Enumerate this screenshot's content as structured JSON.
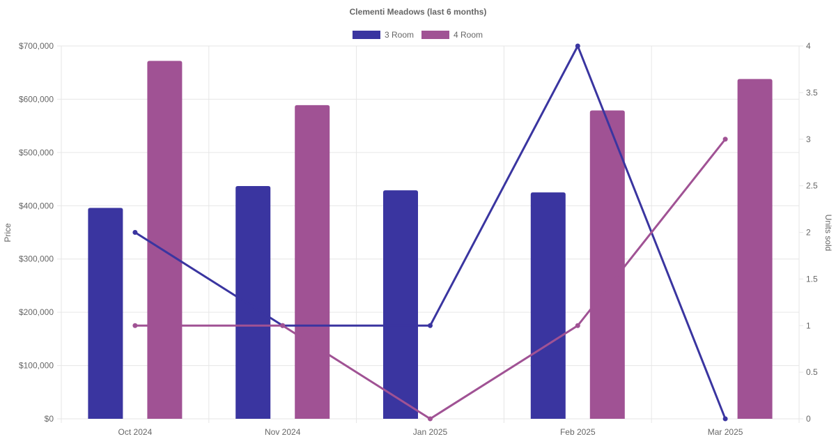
{
  "chart_data": {
    "type": "bar",
    "title": "Clementi Meadows (last 6 months)",
    "categories": [
      "Oct 2024",
      "Nov 2024",
      "Jan 2025",
      "Feb 2025",
      "Mar 2025"
    ],
    "y_left": {
      "label": "Price",
      "range": [
        0,
        700000
      ],
      "ticks": [
        0,
        100000,
        200000,
        300000,
        400000,
        500000,
        600000,
        700000
      ],
      "tick_labels": [
        "$0",
        "$100,000",
        "$200,000",
        "$300,000",
        "$400,000",
        "$500,000",
        "$600,000",
        "$700,000"
      ]
    },
    "y_right": {
      "label": "Units sold",
      "range": [
        0,
        4
      ],
      "ticks": [
        0,
        0.5,
        1,
        1.5,
        2,
        2.5,
        3,
        3.5,
        4
      ],
      "tick_labels": [
        "0",
        "0.5",
        "1",
        "1.5",
        "2",
        "2.5",
        "3",
        "3.5",
        "4"
      ]
    },
    "bar_series": [
      {
        "name": "3 Room",
        "color": "#3a35a0",
        "values": [
          396000,
          437000,
          429000,
          425000,
          null
        ]
      },
      {
        "name": "4 Room",
        "color": "#a05294",
        "values": [
          672000,
          589000,
          null,
          579000,
          638000
        ]
      }
    ],
    "line_series": [
      {
        "series": "3 Room",
        "color": "#3a35a0",
        "values": [
          2,
          1,
          1,
          4,
          0
        ]
      },
      {
        "series": "4 Room",
        "color": "#a05294",
        "values": [
          1,
          1,
          0,
          1,
          3
        ]
      }
    ],
    "legend": {
      "position": "top",
      "entries": [
        "3 Room",
        "4 Room"
      ]
    },
    "grid": true
  }
}
